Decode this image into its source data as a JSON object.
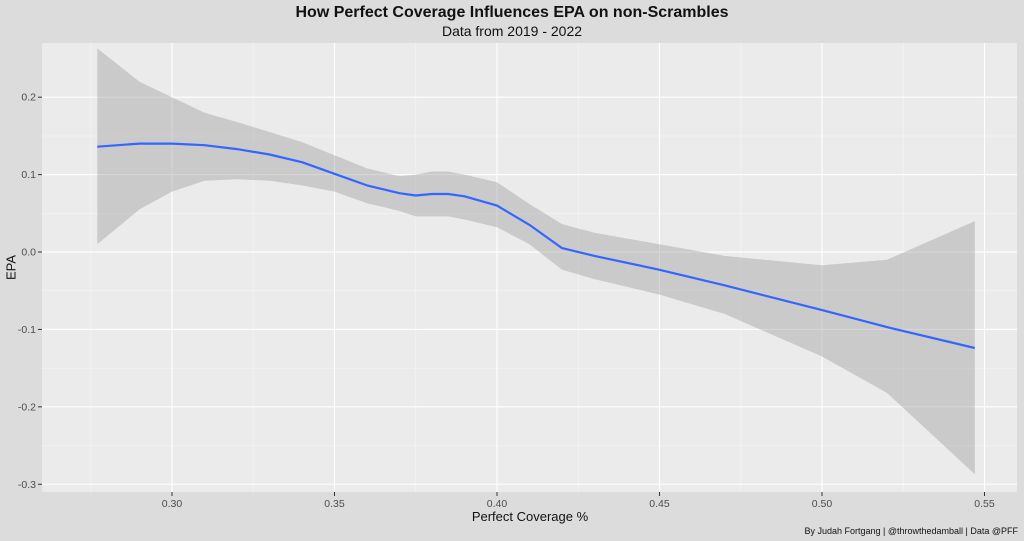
{
  "chart_data": {
    "type": "line",
    "title": "How Perfect Coverage Influences EPA on non-Scrambles",
    "subtitle": "Data from 2019 - 2022",
    "xlabel": "Perfect Coverage %",
    "ylabel": "EPA",
    "caption": "By Judah Fortgang | @throwthedamball | Data @PFF",
    "xlim": [
      0.26,
      0.56
    ],
    "ylim": [
      -0.31,
      0.27
    ],
    "x_ticks": [
      0.3,
      0.35,
      0.4,
      0.45,
      0.5,
      0.55
    ],
    "x_tick_labels": [
      "0.30",
      "0.35",
      "0.40",
      "0.45",
      "0.50",
      "0.55"
    ],
    "y_ticks": [
      -0.3,
      -0.2,
      -0.1,
      0.0,
      0.1,
      0.2
    ],
    "y_tick_labels": [
      "-0.3",
      "-0.2",
      "-0.1",
      "0.0",
      "0.1",
      "0.2"
    ],
    "grid": true,
    "series": [
      {
        "x": [
          0.277,
          0.29,
          0.3,
          0.31,
          0.32,
          0.33,
          0.34,
          0.35,
          0.36,
          0.37,
          0.375,
          0.38,
          0.385,
          0.39,
          0.4,
          0.41,
          0.42,
          0.43,
          0.45,
          0.47,
          0.5,
          0.52,
          0.547
        ],
        "y": [
          0.136,
          0.14,
          0.14,
          0.138,
          0.133,
          0.126,
          0.116,
          0.101,
          0.086,
          0.076,
          0.073,
          0.075,
          0.075,
          0.072,
          0.06,
          0.035,
          0.005,
          -0.005,
          -0.023,
          -0.043,
          -0.075,
          -0.097,
          -0.124
        ],
        "upper": [
          0.263,
          0.22,
          0.2,
          0.18,
          0.168,
          0.155,
          0.142,
          0.125,
          0.108,
          0.098,
          0.1,
          0.104,
          0.104,
          0.1,
          0.09,
          0.062,
          0.036,
          0.025,
          0.01,
          -0.005,
          -0.017,
          -0.01,
          0.04
        ],
        "lower": [
          0.01,
          0.055,
          0.078,
          0.092,
          0.094,
          0.092,
          0.086,
          0.078,
          0.063,
          0.053,
          0.046,
          0.046,
          0.046,
          0.042,
          0.032,
          0.01,
          -0.023,
          -0.035,
          -0.055,
          -0.08,
          -0.135,
          -0.182,
          -0.287
        ],
        "color": "#3366ff",
        "band_color": "#999999"
      }
    ],
    "panel_background": "#ebebeb",
    "plot_background": "#dcdcdc"
  }
}
